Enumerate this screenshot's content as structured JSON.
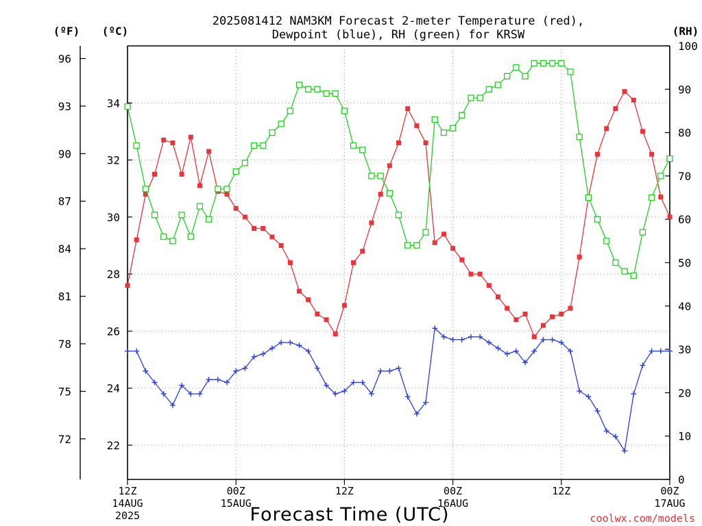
{
  "chart_data": {
    "type": "line",
    "title_lines": [
      "2025081412 NAM3KM Forecast 2-meter Temperature (red),",
      "Dewpoint (blue), RH (green) for KRSW"
    ],
    "xlabel": "Forecast Time (UTC)",
    "x_hours": [
      0,
      1,
      2,
      3,
      4,
      5,
      6,
      7,
      8,
      9,
      10,
      11,
      12,
      13,
      14,
      15,
      16,
      17,
      18,
      19,
      20,
      21,
      22,
      23,
      24,
      25,
      26,
      27,
      28,
      29,
      30,
      31,
      32,
      33,
      34,
      35,
      36,
      37,
      38,
      39,
      40,
      41,
      42,
      43,
      44,
      45,
      46,
      47,
      48,
      49,
      50,
      51,
      52,
      53,
      54,
      55,
      56,
      57,
      58,
      59,
      60
    ],
    "xlim": [
      0,
      60
    ],
    "x_ticks": [
      {
        "hour": 0,
        "lines": [
          "12Z",
          "14AUG",
          "2025"
        ]
      },
      {
        "hour": 12,
        "lines": [
          "00Z",
          "15AUG"
        ]
      },
      {
        "hour": 24,
        "lines": [
          "12Z"
        ]
      },
      {
        "hour": 36,
        "lines": [
          "00Z",
          "16AUG"
        ]
      },
      {
        "hour": 48,
        "lines": [
          "12Z"
        ]
      },
      {
        "hour": 60,
        "lines": [
          "00Z",
          "17AUG"
        ]
      }
    ],
    "left_f_axis": {
      "unit": "(ºF)",
      "ticks": [
        72,
        75,
        78,
        81,
        84,
        87,
        90,
        93,
        96
      ]
    },
    "left_c_axis": {
      "unit": "(ºC)",
      "ticks": [
        22,
        24,
        26,
        28,
        30,
        32,
        34
      ],
      "ylim": [
        20.8,
        36
      ]
    },
    "right_rh_axis": {
      "unit": "(RH)",
      "ticks": [
        0,
        10,
        20,
        30,
        40,
        50,
        60,
        70,
        80,
        90,
        100
      ],
      "ylim": [
        0,
        100
      ]
    },
    "grid": true,
    "series": [
      {
        "name": "2-meter Temperature",
        "color": "#e8343a",
        "marker": "square-filled",
        "axis": "c",
        "values": [
          27.6,
          29.2,
          30.8,
          31.5,
          32.7,
          32.6,
          31.5,
          32.8,
          31.1,
          32.3,
          30.9,
          30.8,
          30.3,
          30.0,
          29.6,
          29.6,
          29.3,
          29.0,
          28.4,
          27.4,
          27.1,
          26.6,
          26.4,
          25.9,
          26.9,
          28.4,
          28.8,
          29.8,
          30.8,
          31.8,
          32.6,
          33.8,
          33.2,
          32.6,
          29.1,
          29.4,
          28.9,
          28.5,
          28.0,
          28.0,
          27.6,
          27.2,
          26.8,
          26.4,
          26.6,
          25.8,
          26.2,
          26.5,
          26.6,
          26.8,
          28.6,
          30.7,
          32.2,
          33.1,
          33.8,
          34.4,
          34.1,
          33.0,
          32.2,
          30.7,
          30.0
        ]
      },
      {
        "name": "Dewpoint",
        "color": "#2a3ee0",
        "marker": "plus",
        "axis": "c",
        "values": [
          25.3,
          25.3,
          24.6,
          24.2,
          23.8,
          23.4,
          24.1,
          23.8,
          23.8,
          24.3,
          24.3,
          24.2,
          24.6,
          24.7,
          25.1,
          25.2,
          25.4,
          25.6,
          25.6,
          25.5,
          25.3,
          24.7,
          24.1,
          23.8,
          23.9,
          24.2,
          24.2,
          23.8,
          24.6,
          24.6,
          24.7,
          23.7,
          23.1,
          23.5,
          26.1,
          25.8,
          25.7,
          25.7,
          25.8,
          25.8,
          25.6,
          25.4,
          25.2,
          25.3,
          24.9,
          25.3,
          25.7,
          25.7,
          25.6,
          25.3,
          23.9,
          23.7,
          23.2,
          22.5,
          22.3,
          21.8,
          23.8,
          24.8,
          25.3,
          25.3,
          25.3
        ]
      },
      {
        "name": "RH",
        "color": "#22d022",
        "marker": "square-open",
        "axis": "rh",
        "values": [
          86,
          77,
          67,
          61,
          56,
          55,
          61,
          56,
          63,
          60,
          67,
          67,
          71,
          73,
          77,
          77,
          80,
          82,
          85,
          91,
          90,
          90,
          89,
          89,
          85,
          77,
          76,
          70,
          70,
          66,
          61,
          54,
          54,
          57,
          83,
          80,
          81,
          84,
          88,
          88,
          90,
          91,
          93,
          95,
          93,
          96,
          96,
          96,
          96,
          94,
          79,
          65,
          60,
          55,
          50,
          48,
          47,
          57,
          65,
          70,
          74
        ]
      }
    ]
  },
  "credit": "coolwx.com/models"
}
